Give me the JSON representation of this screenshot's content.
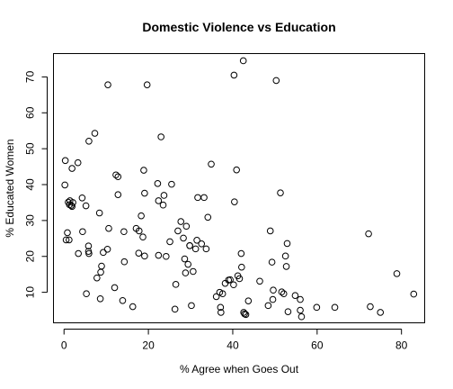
{
  "chart_data": {
    "type": "scatter",
    "title": "Domestic Violence vs Education",
    "xlabel": "% Agree when Goes Out",
    "ylabel": "% Educated Women",
    "xlim": [
      -2.5,
      85.5
    ],
    "ylim": [
      1.5,
      76.5
    ],
    "x_ticks": [
      0,
      20,
      40,
      60,
      80
    ],
    "y_ticks": [
      10,
      20,
      30,
      40,
      50,
      60,
      70
    ],
    "grid": false,
    "legend": "none",
    "point_color": "#000000",
    "points": [
      {
        "x": 0.3,
        "y": 46.7
      },
      {
        "x": 0.2,
        "y": 39.9
      },
      {
        "x": 0.8,
        "y": 26.6
      },
      {
        "x": 0.5,
        "y": 24.6
      },
      {
        "x": 1.2,
        "y": 24.6
      },
      {
        "x": 1.0,
        "y": 35.1
      },
      {
        "x": 1.3,
        "y": 34.4
      },
      {
        "x": 1.7,
        "y": 34.2
      },
      {
        "x": 1.4,
        "y": 35.5
      },
      {
        "x": 1.9,
        "y": 33.9
      },
      {
        "x": 2.1,
        "y": 35.0
      },
      {
        "x": 1.9,
        "y": 44.5
      },
      {
        "x": 3.3,
        "y": 46.1
      },
      {
        "x": 3.4,
        "y": 20.8
      },
      {
        "x": 4.3,
        "y": 36.3
      },
      {
        "x": 4.4,
        "y": 26.9
      },
      {
        "x": 5.2,
        "y": 34.1
      },
      {
        "x": 5.3,
        "y": 9.6
      },
      {
        "x": 5.8,
        "y": 22.9
      },
      {
        "x": 5.8,
        "y": 21.4
      },
      {
        "x": 5.9,
        "y": 20.8
      },
      {
        "x": 5.9,
        "y": 52.1
      },
      {
        "x": 7.3,
        "y": 54.3
      },
      {
        "x": 7.8,
        "y": 14.0
      },
      {
        "x": 8.4,
        "y": 32.1
      },
      {
        "x": 8.6,
        "y": 8.2
      },
      {
        "x": 8.7,
        "y": 15.6
      },
      {
        "x": 8.9,
        "y": 17.3
      },
      {
        "x": 9.3,
        "y": 21.1
      },
      {
        "x": 10.3,
        "y": 22.0
      },
      {
        "x": 10.6,
        "y": 27.8
      },
      {
        "x": 10.4,
        "y": 67.8
      },
      {
        "x": 12.0,
        "y": 11.3
      },
      {
        "x": 12.3,
        "y": 42.7
      },
      {
        "x": 12.8,
        "y": 42.2
      },
      {
        "x": 12.8,
        "y": 37.2
      },
      {
        "x": 13.9,
        "y": 7.7
      },
      {
        "x": 14.3,
        "y": 18.5
      },
      {
        "x": 14.2,
        "y": 26.9
      },
      {
        "x": 16.3,
        "y": 6.0
      },
      {
        "x": 17.1,
        "y": 27.8
      },
      {
        "x": 17.7,
        "y": 20.9
      },
      {
        "x": 17.8,
        "y": 27.1
      },
      {
        "x": 18.3,
        "y": 31.3
      },
      {
        "x": 18.7,
        "y": 25.4
      },
      {
        "x": 18.9,
        "y": 44.0
      },
      {
        "x": 19.1,
        "y": 37.6
      },
      {
        "x": 19.1,
        "y": 20.1
      },
      {
        "x": 19.7,
        "y": 67.8
      },
      {
        "x": 22.2,
        "y": 40.3
      },
      {
        "x": 22.4,
        "y": 35.5
      },
      {
        "x": 22.4,
        "y": 20.3
      },
      {
        "x": 23.0,
        "y": 53.3
      },
      {
        "x": 23.5,
        "y": 34.3
      },
      {
        "x": 23.7,
        "y": 37.0
      },
      {
        "x": 24.2,
        "y": 20.0
      },
      {
        "x": 25.1,
        "y": 24.1
      },
      {
        "x": 25.5,
        "y": 40.1
      },
      {
        "x": 26.3,
        "y": 5.3
      },
      {
        "x": 26.5,
        "y": 12.2
      },
      {
        "x": 27.0,
        "y": 27.1
      },
      {
        "x": 27.7,
        "y": 29.7
      },
      {
        "x": 28.3,
        "y": 25.1
      },
      {
        "x": 28.6,
        "y": 19.3
      },
      {
        "x": 28.8,
        "y": 15.4
      },
      {
        "x": 29.0,
        "y": 28.4
      },
      {
        "x": 29.4,
        "y": 17.8
      },
      {
        "x": 29.8,
        "y": 23.0
      },
      {
        "x": 29.8,
        "y": 23.0
      },
      {
        "x": 30.2,
        "y": 6.3
      },
      {
        "x": 30.6,
        "y": 15.8
      },
      {
        "x": 31.2,
        "y": 22.1
      },
      {
        "x": 31.5,
        "y": 24.5
      },
      {
        "x": 31.7,
        "y": 36.4
      },
      {
        "x": 32.6,
        "y": 23.5
      },
      {
        "x": 33.2,
        "y": 36.4
      },
      {
        "x": 33.7,
        "y": 22.1
      },
      {
        "x": 34.1,
        "y": 30.9
      },
      {
        "x": 34.9,
        "y": 45.7
      },
      {
        "x": 36.1,
        "y": 8.8
      },
      {
        "x": 36.9,
        "y": 10.0
      },
      {
        "x": 37.1,
        "y": 5.8
      },
      {
        "x": 37.2,
        "y": 4.4
      },
      {
        "x": 37.6,
        "y": 9.6
      },
      {
        "x": 38.2,
        "y": 12.5
      },
      {
        "x": 39.0,
        "y": 13.4
      },
      {
        "x": 39.4,
        "y": 13.5
      },
      {
        "x": 40.2,
        "y": 12.1
      },
      {
        "x": 40.3,
        "y": 70.5
      },
      {
        "x": 40.4,
        "y": 35.2
      },
      {
        "x": 40.9,
        "y": 44.1
      },
      {
        "x": 41.2,
        "y": 14.6
      },
      {
        "x": 41.6,
        "y": 13.8
      },
      {
        "x": 42.0,
        "y": 20.8
      },
      {
        "x": 42.1,
        "y": 17.0
      },
      {
        "x": 42.5,
        "y": 74.5
      },
      {
        "x": 42.6,
        "y": 4.4
      },
      {
        "x": 42.8,
        "y": 4.0
      },
      {
        "x": 43.1,
        "y": 3.8
      },
      {
        "x": 43.7,
        "y": 7.6
      },
      {
        "x": 46.4,
        "y": 13.1
      },
      {
        "x": 48.4,
        "y": 6.3
      },
      {
        "x": 48.9,
        "y": 27.1
      },
      {
        "x": 49.3,
        "y": 18.4
      },
      {
        "x": 49.5,
        "y": 8.0
      },
      {
        "x": 49.6,
        "y": 10.6
      },
      {
        "x": 50.3,
        "y": 69.0
      },
      {
        "x": 51.3,
        "y": 37.7
      },
      {
        "x": 51.6,
        "y": 10.1
      },
      {
        "x": 52.1,
        "y": 9.6
      },
      {
        "x": 52.5,
        "y": 20.1
      },
      {
        "x": 52.7,
        "y": 17.2
      },
      {
        "x": 52.9,
        "y": 23.6
      },
      {
        "x": 53.1,
        "y": 4.6
      },
      {
        "x": 54.8,
        "y": 9.1
      },
      {
        "x": 56.0,
        "y": 8.0
      },
      {
        "x": 56.0,
        "y": 5.0
      },
      {
        "x": 56.3,
        "y": 3.2
      },
      {
        "x": 59.9,
        "y": 5.8
      },
      {
        "x": 64.2,
        "y": 5.8
      },
      {
        "x": 72.2,
        "y": 26.3
      },
      {
        "x": 72.6,
        "y": 6.0
      },
      {
        "x": 75.0,
        "y": 4.4
      },
      {
        "x": 78.9,
        "y": 15.2
      },
      {
        "x": 82.9,
        "y": 9.5
      }
    ]
  }
}
